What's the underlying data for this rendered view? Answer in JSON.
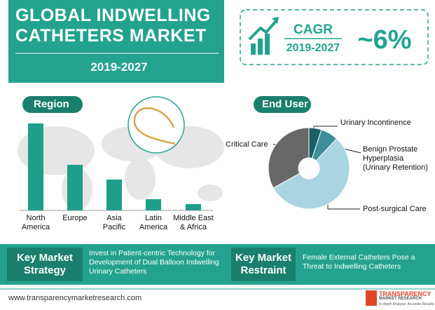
{
  "header": {
    "title": "GLOBAL INDWELLING CATHETERS MARKET",
    "years": "2019-2027"
  },
  "cagr": {
    "label": "CAGR",
    "years": "2019-2027",
    "value": "~6%"
  },
  "region": {
    "chart_data": {
      "type": "bar",
      "title": "Region",
      "categories": [
        "North America",
        "Europe",
        "Asia Pacific",
        "Latin America",
        "Middle East & Africa"
      ],
      "values": [
        124,
        65,
        44,
        16,
        9
      ],
      "color": "#1f9e89"
    }
  },
  "end_user": {
    "chart_data": {
      "type": "pie",
      "title": "End User",
      "categories": [
        "Urinary Incontinence",
        "Benign Prostate Hyperplasia (Urinary Retention)",
        "Post-surgical Care",
        "Critical Care"
      ],
      "values": [
        5,
        7,
        55,
        33
      ],
      "colors": [
        "#1b5f66",
        "#3d8f9c",
        "#a9d5e2",
        "#686868"
      ]
    }
  },
  "strategy": {
    "label": "Key Market Strategy",
    "text": "Invest in Patient-centric Technology for Development of Dual Balloon Indwelling Urinary Catheters"
  },
  "restraint": {
    "label": "Key Market Restraint",
    "text": "Female External Catheters Pose a Threat to Indwelling Catheters"
  },
  "footer": {
    "url": "www.transparencymarketresearch.com",
    "logo": "TRANSPARENCY",
    "logo_sub": "MARKET RESEARCH",
    "tagline": "In-depth Analysis. Accurate Results"
  }
}
